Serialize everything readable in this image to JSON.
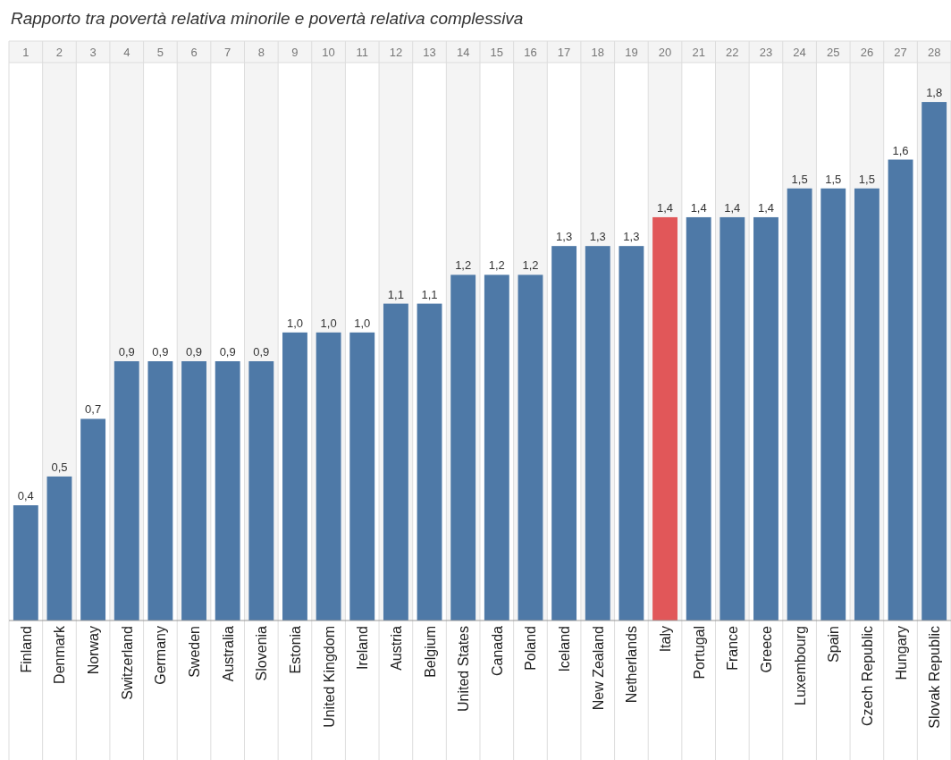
{
  "chart_data": {
    "type": "bar",
    "title": "Rapporto tra povertà relativa minorile e povertà relativa complessiva",
    "categories": [
      "Finland",
      "Denmark",
      "Norway",
      "Switzerland",
      "Germany",
      "Sweden",
      "Australia",
      "Slovenia",
      "Estonia",
      "United Kingdom",
      "Ireland",
      "Austria",
      "Belgium",
      "United States",
      "Canada",
      "Poland",
      "Iceland",
      "New Zealand",
      "Netherlands",
      "Italy",
      "Portugal",
      "France",
      "Greece",
      "Luxembourg",
      "Spain",
      "Czech Republic",
      "Hungary",
      "Slovak Republic"
    ],
    "values": [
      0.4,
      0.5,
      0.7,
      0.9,
      0.9,
      0.9,
      0.9,
      0.9,
      1.0,
      1.0,
      1.0,
      1.1,
      1.1,
      1.2,
      1.2,
      1.2,
      1.3,
      1.3,
      1.3,
      1.4,
      1.4,
      1.4,
      1.4,
      1.5,
      1.5,
      1.5,
      1.6,
      1.8
    ],
    "value_labels": [
      "0,4",
      "0,5",
      "0,7",
      "0,9",
      "0,9",
      "0,9",
      "0,9",
      "0,9",
      "1,0",
      "1,0",
      "1,0",
      "1,1",
      "1,1",
      "1,2",
      "1,2",
      "1,2",
      "1,3",
      "1,3",
      "1,3",
      "1,4",
      "1,4",
      "1,4",
      "1,4",
      "1,5",
      "1,5",
      "1,5",
      "1,6",
      "1,8"
    ],
    "colors": [
      "#4e79a7",
      "#4e79a7",
      "#4e79a7",
      "#4e79a7",
      "#4e79a7",
      "#4e79a7",
      "#4e79a7",
      "#4e79a7",
      "#4e79a7",
      "#4e79a7",
      "#4e79a7",
      "#4e79a7",
      "#4e79a7",
      "#4e79a7",
      "#4e79a7",
      "#4e79a7",
      "#4e79a7",
      "#4e79a7",
      "#4e79a7",
      "#e15759",
      "#4e79a7",
      "#4e79a7",
      "#4e79a7",
      "#4e79a7",
      "#4e79a7",
      "#4e79a7",
      "#4e79a7",
      "#4e79a7"
    ],
    "relative": false,
    "x2lim": [
      0.5,
      28.5
    ],
    "x2ticks": [
      1,
      2,
      3,
      4,
      5,
      6,
      7,
      8,
      9,
      10,
      11,
      12,
      13,
      14,
      15,
      16,
      17,
      18,
      19,
      20,
      21,
      22,
      23,
      24,
      25,
      26,
      27,
      28
    ]
  }
}
